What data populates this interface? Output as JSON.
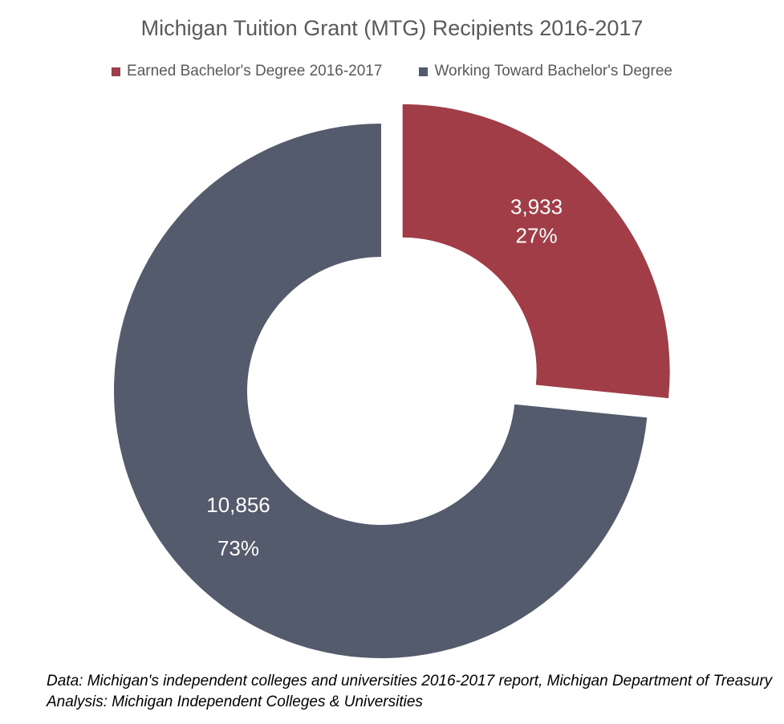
{
  "chart_data": {
    "type": "pie",
    "variant": "donut",
    "title": "Michigan Tuition Grant (MTG) Recipients 2016-2017",
    "legend_position": "top",
    "series": [
      {
        "name": "Earned Bachelor's Degree 2016-2017",
        "value": 3933,
        "value_label": "3,933",
        "percent": 27,
        "percent_label": "27%",
        "color": "#A13D47",
        "exploded": true
      },
      {
        "name": "Working Toward Bachelor's Degree",
        "value": 10856,
        "value_label": "10,856",
        "percent": 73,
        "percent_label": "73%",
        "color": "#545B6C",
        "exploded": false
      }
    ]
  },
  "footer": {
    "line1": "Data: Michigan's independent colleges and universities 2016-2017 report, Michigan Department of Treasury",
    "line2": "Analysis: Michigan Independent Colleges & Universities"
  }
}
